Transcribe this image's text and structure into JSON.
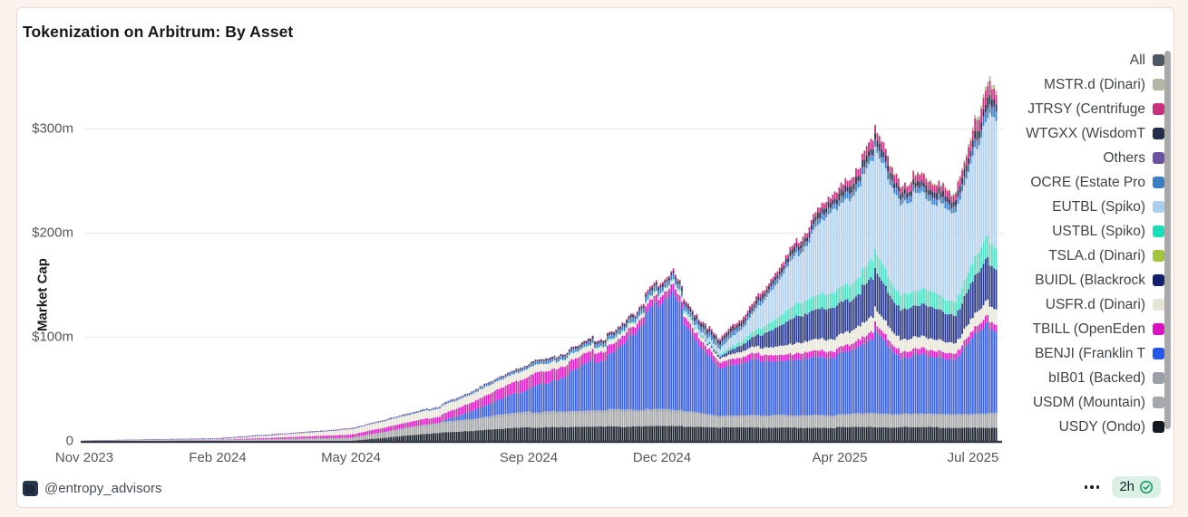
{
  "header": {
    "title": "Tokenization on Arbitrum: By Asset"
  },
  "footer": {
    "handle": "@entropy_advisors",
    "avatar_icon": "entropy-advisors-logo",
    "more_icon": "ellipsis-icon",
    "timestamp": "2h",
    "verified_icon": "verified-check-icon",
    "badge_bg": "#d9f0e2",
    "check_color": "#189a6d"
  },
  "legend": {
    "position": "right",
    "scrollbar": true,
    "items": [
      {
        "label": "All",
        "color": "#4f5862"
      },
      {
        "label": "MSTR.d (Dinari)",
        "color": "#b2b7a5"
      },
      {
        "label": "JTRSY (Centrifuge",
        "color": "#c9307e"
      },
      {
        "label": "WTGXX (WisdomT",
        "color": "#232e4a"
      },
      {
        "label": "Others",
        "color": "#6a51a3"
      },
      {
        "label": "OCRE (Estate Pro",
        "color": "#3a7fc1"
      },
      {
        "label": "EUTBL (Spiko)",
        "color": "#a8cdee"
      },
      {
        "label": "USTBL (Spiko)",
        "color": "#17e0b8"
      },
      {
        "label": "TSLA.d (Dinari)",
        "color": "#a2c53b"
      },
      {
        "label": "BUIDL (Blackrock",
        "color": "#121f6e"
      },
      {
        "label": "USFR.d (Dinari)",
        "color": "#e5e5d8"
      },
      {
        "label": "TBILL (OpenEden",
        "color": "#df10bf"
      },
      {
        "label": "BENJI (Franklin T",
        "color": "#2457eb"
      },
      {
        "label": "bIB01 (Backed)",
        "color": "#9aa0a6"
      },
      {
        "label": "USDM (Mountain)",
        "color": "#a4a8ac"
      },
      {
        "label": "USDY (Ondo)",
        "color": "#131921"
      }
    ]
  },
  "chart_data": {
    "type": "bar",
    "subtype": "stacked-dense-daily",
    "title": "Tokenization on Arbitrum: By Asset",
    "xlabel": "",
    "ylabel": "Market Cap",
    "ylim": [
      0,
      360
    ],
    "y_unit": "$m",
    "grid": "horizontal",
    "yticks": [
      {
        "label": "$300m",
        "value": 300
      },
      {
        "label": "$200m",
        "value": 200
      },
      {
        "label": "$100m",
        "value": 100
      },
      {
        "label": "0",
        "value": 0
      }
    ],
    "xticks": [
      {
        "label": "Nov 2023",
        "month": 0
      },
      {
        "label": "Feb 2024",
        "month": 3
      },
      {
        "label": "May 2024",
        "month": 6
      },
      {
        "label": "Sep 2024",
        "month": 10
      },
      {
        "label": "Dec 2024",
        "month": 13
      },
      {
        "label": "Apr 2025",
        "month": 17
      },
      {
        "label": "Jul 2025",
        "month": 20
      }
    ],
    "x_months_since_nov_2023": [
      0,
      3,
      6,
      8,
      10,
      12,
      12.8,
      13.2,
      13.8,
      14.3,
      15,
      16,
      17,
      17.8,
      18.3,
      19,
      19.6,
      20.3,
      20.55
    ],
    "series": [
      {
        "name": "USDY (Ondo)",
        "color": "#1a212b",
        "values": [
          0,
          0,
          0,
          8,
          13,
          14,
          14,
          14,
          14,
          13,
          13,
          13,
          13,
          13,
          13,
          13,
          13,
          13,
          13
        ]
      },
      {
        "name": "USDM (Mountain)",
        "color": "#a6a8aa",
        "values": [
          0,
          0.3,
          2,
          8,
          12,
          13,
          13,
          13,
          12,
          9,
          10,
          10,
          10,
          12,
          11,
          11,
          11,
          12,
          12
        ]
      },
      {
        "name": "bIB01 (Backed)",
        "color": "#989ea4",
        "values": [
          0.2,
          0.5,
          1,
          2,
          3,
          3,
          3,
          3,
          2,
          2,
          2,
          2,
          2,
          2,
          2,
          2,
          2,
          2,
          2
        ]
      },
      {
        "name": "BENJI (Franklin)",
        "color": "#3a60e4",
        "values": [
          0,
          0,
          0,
          0,
          22,
          55,
          95,
          110,
          70,
          45,
          50,
          55,
          60,
          75,
          55,
          58,
          52,
          85,
          82
        ]
      },
      {
        "name": "TBILL (OpenEden)",
        "color": "#e020c0",
        "values": [
          0,
          0.3,
          3,
          6,
          12,
          8,
          7,
          7,
          7,
          6,
          6,
          6,
          6,
          7,
          6,
          6,
          6,
          7,
          7
        ]
      },
      {
        "name": "USFR.d (Dinari)",
        "color": "#e8e7d9",
        "values": [
          0,
          0.5,
          5,
          8,
          8,
          4,
          3,
          3,
          4,
          4,
          6,
          10,
          12,
          14,
          12,
          11,
          10,
          15,
          15
        ]
      },
      {
        "name": "BUIDL (Blackrock)",
        "color": "#2c3b8c",
        "values": [
          0,
          0,
          0,
          0,
          0,
          0,
          0,
          0,
          0,
          2,
          8,
          25,
          30,
          35,
          28,
          30,
          26,
          40,
          38
        ]
      },
      {
        "name": "USTBL (Spiko)",
        "color": "#55dfc2",
        "values": [
          0,
          0,
          0,
          0,
          0,
          1,
          1,
          1,
          2,
          2,
          5,
          12,
          15,
          18,
          14,
          15,
          13,
          22,
          21
        ]
      },
      {
        "name": "EUTBL (Spiko)",
        "color": "#b4d2ee",
        "values": [
          0,
          0,
          0,
          0,
          0,
          0,
          0,
          0,
          2,
          5,
          15,
          45,
          80,
          95,
          90,
          88,
          80,
          120,
          118
        ]
      },
      {
        "name": "OCRE (Estate)",
        "color": "#3a7fc1",
        "values": [
          0,
          0,
          0,
          1,
          2,
          3,
          4,
          4,
          4,
          4,
          3,
          4,
          5,
          6,
          5,
          5,
          5,
          8,
          8
        ]
      },
      {
        "name": "Others",
        "color": "#6a51a3",
        "values": [
          0.3,
          1,
          1,
          1,
          1,
          1,
          1,
          1,
          1,
          1,
          1,
          1,
          1,
          1,
          1,
          1,
          1,
          2,
          2
        ]
      },
      {
        "name": "WTGXX (WisdomTree)",
        "color": "#232e4a",
        "values": [
          0,
          0,
          0,
          0,
          1,
          2,
          2,
          2,
          3,
          3,
          3,
          4,
          5,
          6,
          5,
          5,
          5,
          8,
          8
        ]
      },
      {
        "name": "JTRSY (Centrifuge)",
        "color": "#c9307e",
        "values": [
          0,
          0,
          0,
          0,
          0,
          1,
          2,
          2,
          2,
          2,
          3,
          4,
          6,
          8,
          7,
          7,
          7,
          12,
          11
        ]
      },
      {
        "name": "TSLA.d (Dinari)",
        "color": "#a2c53b",
        "values": [
          0,
          0,
          0,
          0,
          0,
          0,
          0,
          0,
          0,
          0,
          0,
          0,
          0,
          0.3,
          0.3,
          0.5,
          0.5,
          1,
          1
        ]
      },
      {
        "name": "MSTR.d (Dinari)",
        "color": "#b2b7a5",
        "values": [
          0,
          0,
          0,
          0,
          0,
          0,
          0,
          0,
          0,
          0,
          0,
          0,
          0,
          0.5,
          0.5,
          1,
          1,
          3,
          3
        ]
      }
    ]
  }
}
